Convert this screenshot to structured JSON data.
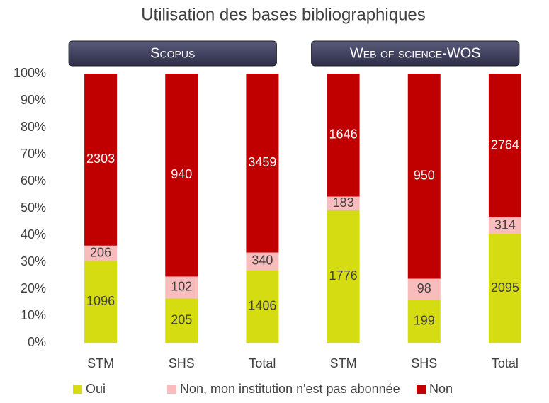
{
  "chart_data": {
    "type": "stacked-bar-percent",
    "title": "Utilisation des bases bibliographiques",
    "groups": [
      {
        "name": "Scopus",
        "categories": [
          "STM",
          "SHS",
          "Total"
        ]
      },
      {
        "name": "Web of science-WOS",
        "categories": [
          "STM",
          "SHS",
          "Total"
        ]
      }
    ],
    "series": [
      {
        "name": "Oui",
        "color": "#d5dc12",
        "values": [
          1096,
          205,
          1406,
          1776,
          199,
          2095
        ]
      },
      {
        "name": "Non, mon institution n'est pas abonnée",
        "color": "#f8bcbc",
        "values": [
          206,
          102,
          340,
          183,
          98,
          314
        ]
      },
      {
        "name": "Non",
        "color": "#c00000",
        "values": [
          2303,
          940,
          3459,
          1646,
          950,
          2764
        ]
      }
    ],
    "ylim": [
      0,
      100
    ],
    "yticks": [
      {
        "value": 0,
        "label": "0%"
      },
      {
        "value": 10,
        "label": "10%"
      },
      {
        "value": 20,
        "label": "20%"
      },
      {
        "value": 30,
        "label": "30%"
      },
      {
        "value": 40,
        "label": "40%"
      },
      {
        "value": 50,
        "label": "50%"
      },
      {
        "value": 60,
        "label": "60%"
      },
      {
        "value": 70,
        "label": "70%"
      },
      {
        "value": 80,
        "label": "80%"
      },
      {
        "value": 90,
        "label": "90%"
      },
      {
        "value": 100,
        "label": "100%"
      }
    ],
    "legend": "bottom"
  }
}
